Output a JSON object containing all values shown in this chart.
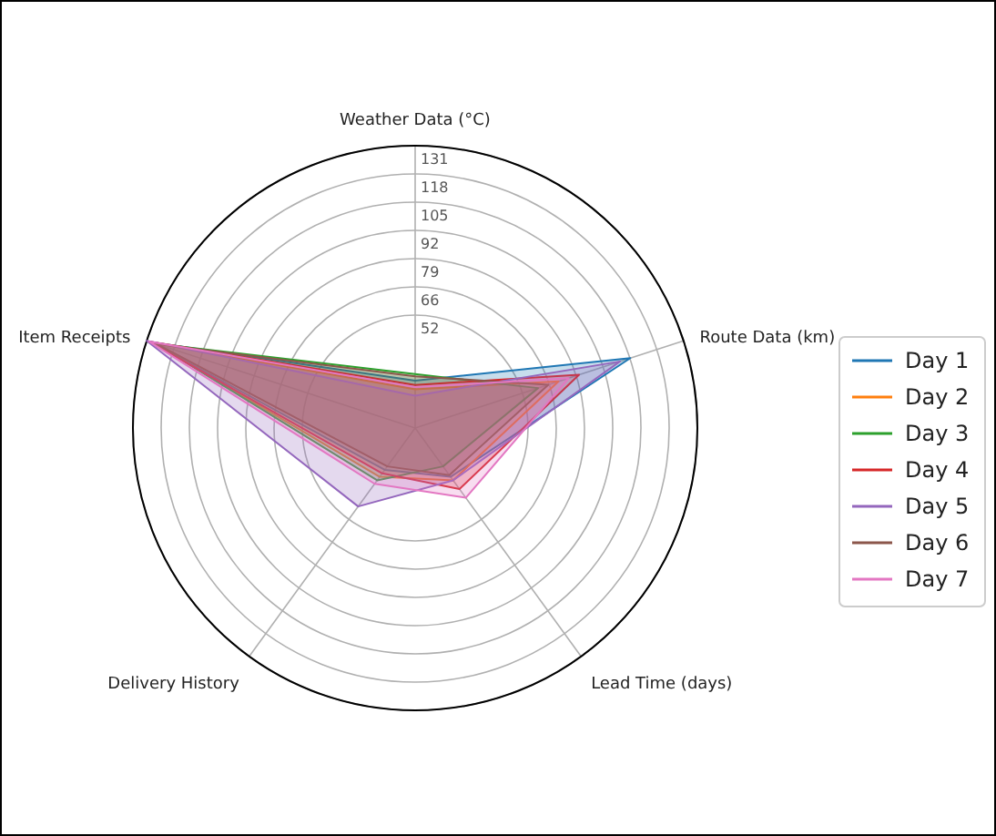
{
  "chart_data": {
    "type": "radar",
    "categories": [
      "Weather Data (°C)",
      "Route Data (km)",
      "Lead Time (days)",
      "Delivery History",
      "Item Receipts"
    ],
    "ylim": [
      0,
      131
    ],
    "yticks": [
      {
        "value": 52.4,
        "label": "52"
      },
      {
        "value": 65.5,
        "label": "66"
      },
      {
        "value": 78.6,
        "label": "79"
      },
      {
        "value": 91.7,
        "label": "92"
      },
      {
        "value": 104.8,
        "label": "105"
      },
      {
        "value": 117.9,
        "label": "118"
      },
      {
        "value": 131,
        "label": "131"
      }
    ],
    "grid": true,
    "legend": "right",
    "series": [
      {
        "name": "Day 1",
        "color": "#1f77b4",
        "values": [
          22,
          105,
          28,
          24,
          129
        ]
      },
      {
        "name": "Day 2",
        "color": "#ff7f0e",
        "values": [
          18,
          70,
          30,
          28,
          128
        ]
      },
      {
        "name": "Day 3",
        "color": "#2ca02c",
        "values": [
          25,
          60,
          22,
          30,
          127
        ]
      },
      {
        "name": "Day 4",
        "color": "#d62728",
        "values": [
          20,
          80,
          35,
          26,
          130
        ]
      },
      {
        "name": "Day 5",
        "color": "#9467bd",
        "values": [
          15,
          100,
          30,
          45,
          131
        ]
      },
      {
        "name": "Day 6",
        "color": "#8c564b",
        "values": [
          24,
          65,
          27,
          22,
          126
        ]
      },
      {
        "name": "Day 7",
        "color": "#e377c2",
        "values": [
          19,
          75,
          40,
          32,
          130
        ]
      }
    ]
  }
}
